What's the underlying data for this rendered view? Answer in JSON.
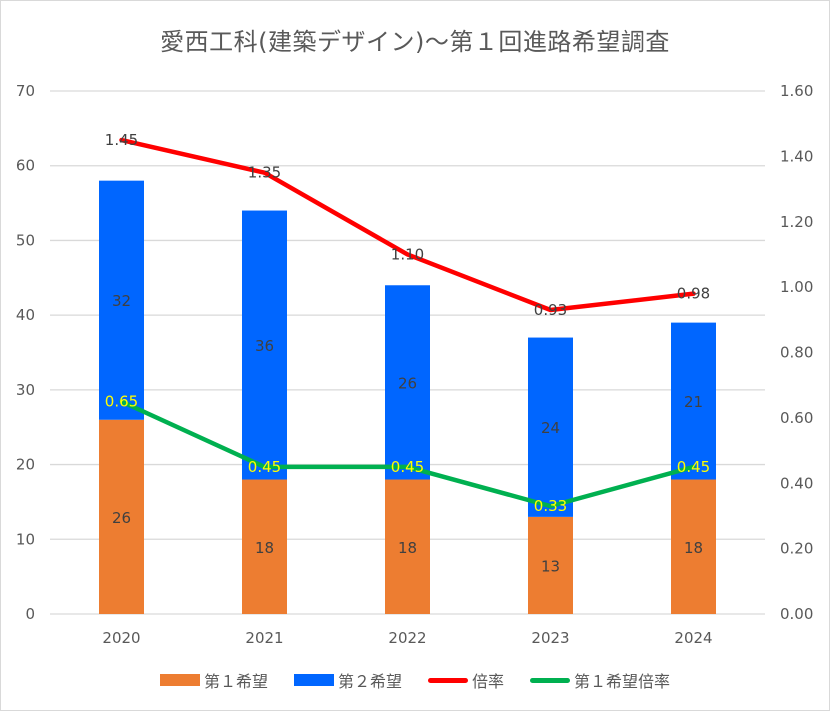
{
  "chart_data": {
    "type": "bar",
    "title": "愛西工科(建築デザイン)〜第１回進路希望調査",
    "categories": [
      "2020",
      "2021",
      "2022",
      "2023",
      "2024"
    ],
    "series": [
      {
        "name": "第１希望",
        "kind": "stacked-bar",
        "axis": "left",
        "color": "#ED7D31",
        "values": [
          26,
          18,
          18,
          13,
          18
        ],
        "labels": [
          "26",
          "18",
          "18",
          "13",
          "18"
        ]
      },
      {
        "name": "第２希望",
        "kind": "stacked-bar",
        "axis": "left",
        "color": "#0066FF",
        "values": [
          32,
          36,
          26,
          24,
          21
        ],
        "labels": [
          "32",
          "36",
          "26",
          "24",
          "21"
        ]
      },
      {
        "name": "倍率",
        "kind": "line",
        "axis": "right",
        "color": "#FF0000",
        "values": [
          1.45,
          1.35,
          1.1,
          0.93,
          0.98
        ],
        "labels": [
          "1.45",
          "1.35",
          "1.10",
          "0.93",
          "0.98"
        ]
      },
      {
        "name": "第１希望倍率",
        "kind": "line",
        "axis": "right",
        "color": "#00B050",
        "values": [
          0.65,
          0.45,
          0.45,
          0.33,
          0.45
        ],
        "labels": [
          "0.65",
          "0.45",
          "0.45",
          "0.33",
          "0.45"
        ]
      }
    ],
    "y_left": {
      "min": 0,
      "max": 70,
      "ticks": [
        "0",
        "10",
        "20",
        "30",
        "40",
        "50",
        "60",
        "70"
      ]
    },
    "y_right": {
      "min": 0,
      "max": 1.6,
      "ticks": [
        "0.00",
        "0.20",
        "0.40",
        "0.60",
        "0.80",
        "1.00",
        "1.20",
        "1.40",
        "1.60"
      ]
    },
    "grid": true,
    "legend_position": "bottom",
    "colors": {
      "grid": "#d9d9d9",
      "text": "#595959",
      "line_label_yellow": "#FFFF00"
    }
  }
}
